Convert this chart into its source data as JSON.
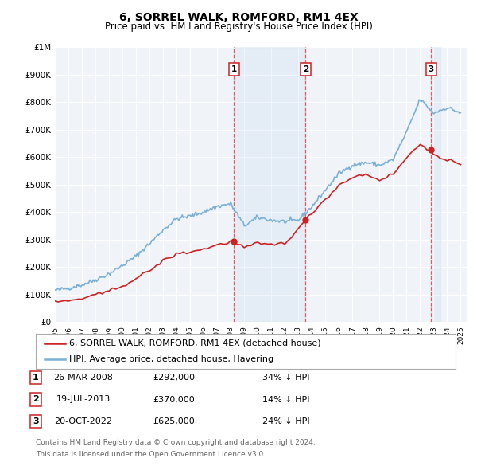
{
  "title": "6, SORREL WALK, ROMFORD, RM1 4EX",
  "subtitle": "Price paid vs. HM Land Registry's House Price Index (HPI)",
  "ylim": [
    0,
    1000000
  ],
  "yticks": [
    0,
    100000,
    200000,
    300000,
    400000,
    500000,
    600000,
    700000,
    800000,
    900000,
    1000000
  ],
  "ytick_labels": [
    "£0",
    "£100K",
    "£200K",
    "£300K",
    "£400K",
    "£500K",
    "£600K",
    "£700K",
    "£800K",
    "£900K",
    "£1M"
  ],
  "hpi_color": "#7ab0d8",
  "price_color": "#cc2222",
  "vline_color": "#dd4444",
  "shade_color": "#ddeeff",
  "background_color": "#ffffff",
  "plot_bg_color": "#f0f4f8",
  "grid_color": "#ffffff",
  "xlim_start": 1995.0,
  "xlim_end": 2025.5,
  "transactions": [
    {
      "label": "1",
      "date_x": 2008.23,
      "price": 292000,
      "date_str": "26-MAR-2008",
      "pct": "34% ↓ HPI"
    },
    {
      "label": "2",
      "date_x": 2013.54,
      "price": 370000,
      "date_str": "19-JUL-2013",
      "pct": "14% ↓ HPI"
    },
    {
      "label": "3",
      "date_x": 2022.8,
      "price": 625000,
      "date_str": "20-OCT-2022",
      "pct": "24% ↓ HPI"
    }
  ],
  "legend_entries": [
    {
      "label": "6, SORREL WALK, ROMFORD, RM1 4EX (detached house)",
      "color": "#cc2222"
    },
    {
      "label": "HPI: Average price, detached house, Havering",
      "color": "#7ab0d8"
    }
  ],
  "footer_lines": [
    "Contains HM Land Registry data © Crown copyright and database right 2024.",
    "This data is licensed under the Open Government Licence v3.0."
  ],
  "hpi_data_x": [
    1995.0,
    1995.083,
    1995.167,
    1995.25,
    1995.333,
    1995.417,
    1995.5,
    1995.583,
    1995.667,
    1995.75,
    1995.833,
    1995.917,
    1996.0,
    1996.083,
    1996.167,
    1996.25,
    1996.333,
    1996.417,
    1996.5,
    1996.583,
    1996.667,
    1996.75,
    1996.833,
    1996.917,
    1997.0,
    1997.083,
    1997.167,
    1997.25,
    1997.333,
    1997.417,
    1997.5,
    1997.583,
    1997.667,
    1997.75,
    1997.833,
    1997.917,
    1998.0,
    1998.083,
    1998.167,
    1998.25,
    1998.333,
    1998.417,
    1998.5,
    1998.583,
    1998.667,
    1998.75,
    1998.833,
    1998.917,
    1999.0,
    1999.083,
    1999.167,
    1999.25,
    1999.333,
    1999.417,
    1999.5,
    1999.583,
    1999.667,
    1999.75,
    1999.833,
    1999.917,
    2000.0,
    2000.083,
    2000.167,
    2000.25,
    2000.333,
    2000.417,
    2000.5,
    2000.583,
    2000.667,
    2000.75,
    2000.833,
    2000.917,
    2001.0,
    2001.083,
    2001.167,
    2001.25,
    2001.333,
    2001.417,
    2001.5,
    2001.583,
    2001.667,
    2001.75,
    2001.833,
    2001.917,
    2002.0,
    2002.083,
    2002.167,
    2002.25,
    2002.333,
    2002.417,
    2002.5,
    2002.583,
    2002.667,
    2002.75,
    2002.833,
    2002.917,
    2003.0,
    2003.083,
    2003.167,
    2003.25,
    2003.333,
    2003.417,
    2003.5,
    2003.583,
    2003.667,
    2003.75,
    2003.833,
    2003.917,
    2004.0,
    2004.083,
    2004.167,
    2004.25,
    2004.333,
    2004.417,
    2004.5,
    2004.583,
    2004.667,
    2004.75,
    2004.833,
    2004.917,
    2005.0,
    2005.083,
    2005.167,
    2005.25,
    2005.333,
    2005.417,
    2005.5,
    2005.583,
    2005.667,
    2005.75,
    2005.833,
    2005.917,
    2006.0,
    2006.083,
    2006.167,
    2006.25,
    2006.333,
    2006.417,
    2006.5,
    2006.583,
    2006.667,
    2006.75,
    2006.833,
    2006.917,
    2007.0,
    2007.083,
    2007.167,
    2007.25,
    2007.333,
    2007.417,
    2007.5,
    2007.583,
    2007.667,
    2007.75,
    2007.833,
    2007.917,
    2008.0,
    2008.083,
    2008.167,
    2008.25,
    2008.333,
    2008.417,
    2008.5,
    2008.583,
    2008.667,
    2008.75,
    2008.833,
    2008.917,
    2009.0,
    2009.083,
    2009.167,
    2009.25,
    2009.333,
    2009.417,
    2009.5,
    2009.583,
    2009.667,
    2009.75,
    2009.833,
    2009.917,
    2010.0,
    2010.083,
    2010.167,
    2010.25,
    2010.333,
    2010.417,
    2010.5,
    2010.583,
    2010.667,
    2010.75,
    2010.833,
    2010.917,
    2011.0,
    2011.083,
    2011.167,
    2011.25,
    2011.333,
    2011.417,
    2011.5,
    2011.583,
    2011.667,
    2011.75,
    2011.833,
    2011.917,
    2012.0,
    2012.083,
    2012.167,
    2012.25,
    2012.333,
    2012.417,
    2012.5,
    2012.583,
    2012.667,
    2012.75,
    2012.833,
    2012.917,
    2013.0,
    2013.083,
    2013.167,
    2013.25,
    2013.333,
    2013.417,
    2013.5,
    2013.583,
    2013.667,
    2013.75,
    2013.833,
    2013.917,
    2014.0,
    2014.083,
    2014.167,
    2014.25,
    2014.333,
    2014.417,
    2014.5,
    2014.583,
    2014.667,
    2014.75,
    2014.833,
    2014.917,
    2015.0,
    2015.083,
    2015.167,
    2015.25,
    2015.333,
    2015.417,
    2015.5,
    2015.583,
    2015.667,
    2015.75,
    2015.833,
    2015.917,
    2016.0,
    2016.083,
    2016.167,
    2016.25,
    2016.333,
    2016.417,
    2016.5,
    2016.583,
    2016.667,
    2016.75,
    2016.833,
    2016.917,
    2017.0,
    2017.083,
    2017.167,
    2017.25,
    2017.333,
    2017.417,
    2017.5,
    2017.583,
    2017.667,
    2017.75,
    2017.833,
    2017.917,
    2018.0,
    2018.083,
    2018.167,
    2018.25,
    2018.333,
    2018.417,
    2018.5,
    2018.583,
    2018.667,
    2018.75,
    2018.833,
    2018.917,
    2019.0,
    2019.083,
    2019.167,
    2019.25,
    2019.333,
    2019.417,
    2019.5,
    2019.583,
    2019.667,
    2019.75,
    2019.833,
    2019.917,
    2020.0,
    2020.083,
    2020.167,
    2020.25,
    2020.333,
    2020.417,
    2020.5,
    2020.583,
    2020.667,
    2020.75,
    2020.833,
    2020.917,
    2021.0,
    2021.083,
    2021.167,
    2021.25,
    2021.333,
    2021.417,
    2021.5,
    2021.583,
    2021.667,
    2021.75,
    2021.833,
    2021.917,
    2022.0,
    2022.083,
    2022.167,
    2022.25,
    2022.333,
    2022.417,
    2022.5,
    2022.583,
    2022.667,
    2022.75,
    2022.833,
    2022.917,
    2023.0,
    2023.083,
    2023.167,
    2023.25,
    2023.333,
    2023.417,
    2023.5,
    2023.583,
    2023.667,
    2023.75,
    2023.833,
    2023.917,
    2024.0,
    2024.083,
    2024.167,
    2024.25,
    2024.333,
    2024.417,
    2024.5,
    2024.583,
    2024.667,
    2024.75,
    2024.833,
    2024.917,
    2025.0
  ],
  "price_data_x": [
    1995.0,
    1995.25,
    1995.5,
    1995.75,
    1996.0,
    1996.25,
    1996.5,
    1996.75,
    1997.0,
    1997.25,
    1997.5,
    1997.75,
    1998.0,
    1998.25,
    1998.5,
    1998.75,
    1999.0,
    1999.25,
    1999.5,
    1999.75,
    2000.0,
    2000.25,
    2000.5,
    2000.75,
    2001.0,
    2001.25,
    2001.5,
    2001.75,
    2002.0,
    2002.25,
    2002.5,
    2002.75,
    2003.0,
    2003.25,
    2003.5,
    2003.75,
    2004.0,
    2004.25,
    2004.5,
    2004.75,
    2005.0,
    2005.25,
    2005.5,
    2005.75,
    2006.0,
    2006.25,
    2006.5,
    2006.75,
    2007.0,
    2007.25,
    2007.5,
    2007.75,
    2008.0,
    2008.23,
    2008.5,
    2008.75,
    2009.0,
    2009.25,
    2009.5,
    2009.75,
    2010.0,
    2010.25,
    2010.5,
    2010.75,
    2011.0,
    2011.25,
    2011.5,
    2011.75,
    2012.0,
    2012.25,
    2012.5,
    2012.75,
    2013.0,
    2013.25,
    2013.54,
    2013.75,
    2014.0,
    2014.25,
    2014.5,
    2014.75,
    2015.0,
    2015.25,
    2015.5,
    2015.75,
    2016.0,
    2016.25,
    2016.5,
    2016.75,
    2017.0,
    2017.25,
    2017.5,
    2017.75,
    2018.0,
    2018.25,
    2018.5,
    2018.75,
    2019.0,
    2019.25,
    2019.5,
    2019.75,
    2020.0,
    2020.25,
    2020.5,
    2020.75,
    2021.0,
    2021.25,
    2021.5,
    2021.75,
    2022.0,
    2022.25,
    2022.5,
    2022.8,
    2023.0,
    2023.25,
    2023.5,
    2023.75,
    2024.0,
    2024.25,
    2024.5,
    2024.75,
    2025.0
  ]
}
